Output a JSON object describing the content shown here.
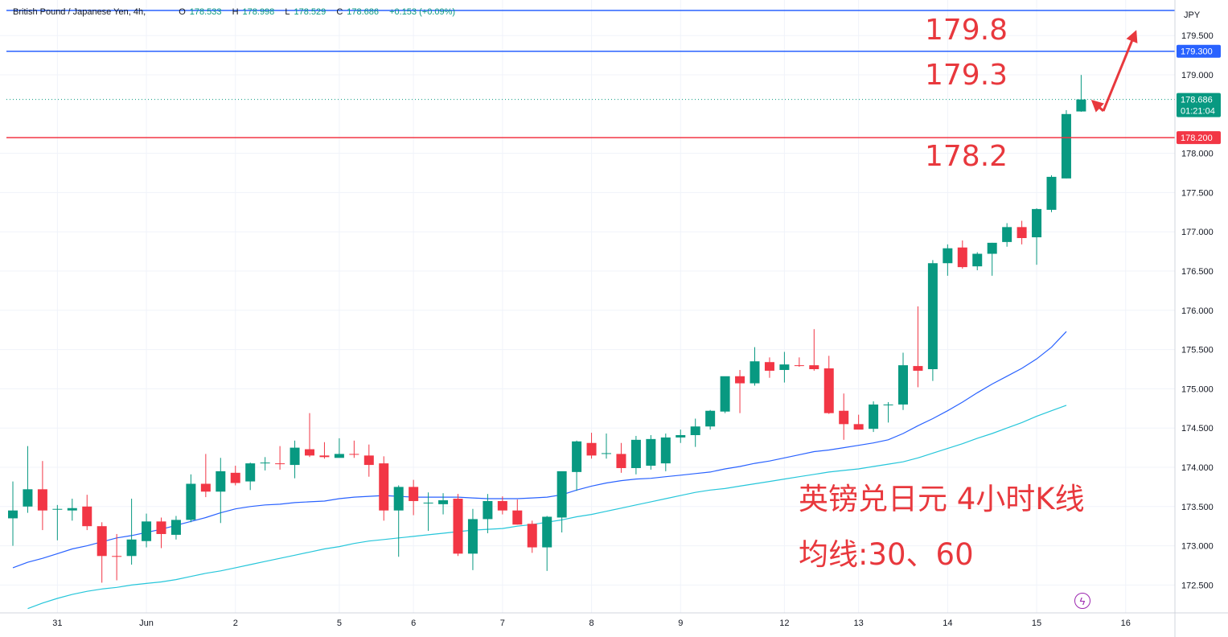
{
  "legend": {
    "title": "British Pound / Japanese Yen, 4h,",
    "open_label": "O",
    "open": "178.533",
    "high_label": "H",
    "high": "178.998",
    "low_label": "L",
    "low": "178.529",
    "close_label": "C",
    "close": "178.686",
    "change": "+0.153 (+0.09%)"
  },
  "currency_label": "JPY",
  "current_price_label": "178.686",
  "countdown": "01:21:04",
  "annotations": {
    "target_high": "179.8",
    "resistance": "179.3",
    "support": "178.2",
    "caption_line1": "英镑兑日元 4小时K线",
    "caption_line2": "均线:30、60"
  },
  "colors": {
    "up": "#089981",
    "down": "#f23645",
    "blue_line": "#2962ff",
    "red_line": "#f23645",
    "ma30": "#2962ff",
    "ma60": "#26c6da",
    "annotation": "#e8383d"
  },
  "chart_data": {
    "type": "candlestick",
    "symbol": "British Pound / Japanese Yen",
    "timeframe": "4h",
    "y_range": [
      172.2,
      179.9
    ],
    "y_ticks": [
      "179.500",
      "179.000",
      "178.000",
      "177.500",
      "177.000",
      "176.500",
      "176.000",
      "175.500",
      "175.000",
      "174.500",
      "174.000",
      "173.500",
      "173.000",
      "172.500"
    ],
    "x_labels": [
      {
        "label": "31",
        "bar": 3
      },
      {
        "label": "Jun",
        "bar": 9
      },
      {
        "label": "2",
        "bar": 15
      },
      {
        "label": "5",
        "bar": 22
      },
      {
        "label": "6",
        "bar": 27
      },
      {
        "label": "7",
        "bar": 33
      },
      {
        "label": "8",
        "bar": 39
      },
      {
        "label": "9",
        "bar": 45
      },
      {
        "label": "12",
        "bar": 52
      },
      {
        "label": "13",
        "bar": 57
      },
      {
        "label": "14",
        "bar": 63
      },
      {
        "label": "15",
        "bar": 69
      },
      {
        "label": "16",
        "bar": 75
      }
    ],
    "candles": [
      {
        "o": 173.35,
        "h": 173.82,
        "l": 173.0,
        "c": 173.45
      },
      {
        "o": 173.5,
        "h": 174.27,
        "l": 173.42,
        "c": 173.72
      },
      {
        "o": 173.72,
        "h": 174.08,
        "l": 173.2,
        "c": 173.45
      },
      {
        "o": 173.47,
        "h": 173.52,
        "l": 173.07,
        "c": 173.47
      },
      {
        "o": 173.45,
        "h": 173.6,
        "l": 173.32,
        "c": 173.48
      },
      {
        "o": 173.5,
        "h": 173.65,
        "l": 173.2,
        "c": 173.25
      },
      {
        "o": 173.25,
        "h": 173.3,
        "l": 172.53,
        "c": 172.87
      },
      {
        "o": 172.87,
        "h": 173.15,
        "l": 172.56,
        "c": 172.86
      },
      {
        "o": 172.87,
        "h": 173.6,
        "l": 172.76,
        "c": 173.08
      },
      {
        "o": 173.06,
        "h": 173.41,
        "l": 172.98,
        "c": 173.31
      },
      {
        "o": 173.31,
        "h": 173.36,
        "l": 172.97,
        "c": 173.15
      },
      {
        "o": 173.14,
        "h": 173.38,
        "l": 173.08,
        "c": 173.33
      },
      {
        "o": 173.33,
        "h": 173.91,
        "l": 173.3,
        "c": 173.79
      },
      {
        "o": 173.79,
        "h": 174.17,
        "l": 173.62,
        "c": 173.69
      },
      {
        "o": 173.69,
        "h": 174.12,
        "l": 173.29,
        "c": 173.95
      },
      {
        "o": 173.93,
        "h": 174.02,
        "l": 173.77,
        "c": 173.8
      },
      {
        "o": 173.82,
        "h": 174.06,
        "l": 173.71,
        "c": 174.05
      },
      {
        "o": 174.05,
        "h": 174.13,
        "l": 173.96,
        "c": 174.06
      },
      {
        "o": 174.05,
        "h": 174.27,
        "l": 173.97,
        "c": 174.04
      },
      {
        "o": 174.03,
        "h": 174.34,
        "l": 173.86,
        "c": 174.25
      },
      {
        "o": 174.23,
        "h": 174.69,
        "l": 174.13,
        "c": 174.15
      },
      {
        "o": 174.15,
        "h": 174.32,
        "l": 174.11,
        "c": 174.13
      },
      {
        "o": 174.12,
        "h": 174.37,
        "l": 174.13,
        "c": 174.17
      },
      {
        "o": 174.17,
        "h": 174.34,
        "l": 174.12,
        "c": 174.16
      },
      {
        "o": 174.15,
        "h": 174.29,
        "l": 173.88,
        "c": 174.03
      },
      {
        "o": 174.05,
        "h": 174.14,
        "l": 173.32,
        "c": 173.45
      },
      {
        "o": 173.45,
        "h": 173.77,
        "l": 172.86,
        "c": 173.75
      },
      {
        "o": 173.75,
        "h": 173.84,
        "l": 173.39,
        "c": 173.57
      },
      {
        "o": 173.55,
        "h": 173.68,
        "l": 173.19,
        "c": 173.55
      },
      {
        "o": 173.53,
        "h": 173.67,
        "l": 173.4,
        "c": 173.58
      },
      {
        "o": 173.6,
        "h": 173.66,
        "l": 172.87,
        "c": 172.9
      },
      {
        "o": 172.9,
        "h": 173.47,
        "l": 172.69,
        "c": 173.34
      },
      {
        "o": 173.34,
        "h": 173.66,
        "l": 173.16,
        "c": 173.57
      },
      {
        "o": 173.57,
        "h": 173.63,
        "l": 173.4,
        "c": 173.45
      },
      {
        "o": 173.45,
        "h": 173.59,
        "l": 173.27,
        "c": 173.27
      },
      {
        "o": 173.28,
        "h": 173.32,
        "l": 172.91,
        "c": 172.98
      },
      {
        "o": 172.98,
        "h": 173.38,
        "l": 172.68,
        "c": 173.37
      },
      {
        "o": 173.36,
        "h": 173.94,
        "l": 173.17,
        "c": 173.95
      },
      {
        "o": 173.94,
        "h": 174.34,
        "l": 173.7,
        "c": 174.33
      },
      {
        "o": 174.31,
        "h": 174.44,
        "l": 174.11,
        "c": 174.15
      },
      {
        "o": 174.17,
        "h": 174.43,
        "l": 174.11,
        "c": 174.18
      },
      {
        "o": 174.17,
        "h": 174.31,
        "l": 173.93,
        "c": 173.99
      },
      {
        "o": 173.99,
        "h": 174.4,
        "l": 173.91,
        "c": 174.35
      },
      {
        "o": 174.02,
        "h": 174.41,
        "l": 173.97,
        "c": 174.36
      },
      {
        "o": 174.05,
        "h": 174.43,
        "l": 173.95,
        "c": 174.38
      },
      {
        "o": 174.38,
        "h": 174.48,
        "l": 174.31,
        "c": 174.41
      },
      {
        "o": 174.41,
        "h": 174.62,
        "l": 174.26,
        "c": 174.52
      },
      {
        "o": 174.52,
        "h": 174.73,
        "l": 174.48,
        "c": 174.72
      },
      {
        "o": 174.71,
        "h": 175.14,
        "l": 174.69,
        "c": 175.16
      },
      {
        "o": 175.16,
        "h": 175.24,
        "l": 174.69,
        "c": 175.07
      },
      {
        "o": 175.07,
        "h": 175.53,
        "l": 175.04,
        "c": 175.35
      },
      {
        "o": 175.34,
        "h": 175.4,
        "l": 175.14,
        "c": 175.23
      },
      {
        "o": 175.24,
        "h": 175.47,
        "l": 175.08,
        "c": 175.31
      },
      {
        "o": 175.3,
        "h": 175.4,
        "l": 175.28,
        "c": 175.29
      },
      {
        "o": 175.3,
        "h": 175.76,
        "l": 175.23,
        "c": 175.25
      },
      {
        "o": 175.26,
        "h": 175.42,
        "l": 174.68,
        "c": 174.69
      },
      {
        "o": 174.72,
        "h": 174.94,
        "l": 174.35,
        "c": 174.55
      },
      {
        "o": 174.55,
        "h": 174.67,
        "l": 174.49,
        "c": 174.48
      },
      {
        "o": 174.49,
        "h": 174.84,
        "l": 174.45,
        "c": 174.8
      },
      {
        "o": 174.8,
        "h": 174.83,
        "l": 174.57,
        "c": 174.8
      },
      {
        "o": 174.8,
        "h": 175.46,
        "l": 174.73,
        "c": 175.3
      },
      {
        "o": 175.29,
        "h": 176.05,
        "l": 175.02,
        "c": 175.23
      },
      {
        "o": 175.25,
        "h": 176.64,
        "l": 175.1,
        "c": 176.6
      },
      {
        "o": 176.6,
        "h": 176.84,
        "l": 176.44,
        "c": 176.79
      },
      {
        "o": 176.8,
        "h": 176.89,
        "l": 176.53,
        "c": 176.55
      },
      {
        "o": 176.56,
        "h": 176.74,
        "l": 176.51,
        "c": 176.72
      },
      {
        "o": 176.72,
        "h": 176.86,
        "l": 176.44,
        "c": 176.86
      },
      {
        "o": 176.87,
        "h": 177.11,
        "l": 176.81,
        "c": 177.06
      },
      {
        "o": 177.06,
        "h": 177.14,
        "l": 176.84,
        "c": 176.92
      },
      {
        "o": 176.93,
        "h": 177.3,
        "l": 176.58,
        "c": 177.29
      },
      {
        "o": 177.28,
        "h": 177.72,
        "l": 177.25,
        "c": 177.7
      },
      {
        "o": 177.68,
        "h": 178.55,
        "l": 177.68,
        "c": 178.5
      },
      {
        "o": 178.533,
        "h": 178.998,
        "l": 178.529,
        "c": 178.686
      }
    ],
    "ma30": [
      172.72,
      172.79,
      172.84,
      172.9,
      172.96,
      173.0,
      173.05,
      173.1,
      173.13,
      173.17,
      173.21,
      173.26,
      173.31,
      173.36,
      173.42,
      173.47,
      173.5,
      173.52,
      173.53,
      173.55,
      173.56,
      173.57,
      173.6,
      173.62,
      173.63,
      173.64,
      173.63,
      173.62,
      173.62,
      173.62,
      173.62,
      173.61,
      173.6,
      173.6,
      173.6,
      173.61,
      173.62,
      173.65,
      173.71,
      173.76,
      173.8,
      173.83,
      173.85,
      173.86,
      173.88,
      173.9,
      173.92,
      173.94,
      173.98,
      174.01,
      174.05,
      174.08,
      174.12,
      174.16,
      174.2,
      174.22,
      174.25,
      174.28,
      174.31,
      174.35,
      174.43,
      174.53,
      174.62,
      174.72,
      174.83,
      174.95,
      175.06,
      175.16,
      175.26,
      175.38,
      175.53,
      175.73
    ],
    "ma60": [
      null,
      172.2,
      172.27,
      172.33,
      172.38,
      172.42,
      172.45,
      172.47,
      172.5,
      172.52,
      172.54,
      172.57,
      172.61,
      172.65,
      172.68,
      172.72,
      172.76,
      172.8,
      172.84,
      172.88,
      172.92,
      172.96,
      172.99,
      173.03,
      173.06,
      173.08,
      173.1,
      173.12,
      173.14,
      173.16,
      173.18,
      173.2,
      173.21,
      173.22,
      173.25,
      173.27,
      173.3,
      173.33,
      173.37,
      173.4,
      173.44,
      173.48,
      173.52,
      173.56,
      173.6,
      173.64,
      173.68,
      173.71,
      173.73,
      173.76,
      173.79,
      173.82,
      173.85,
      173.88,
      173.91,
      173.94,
      173.96,
      173.98,
      174.01,
      174.04,
      174.07,
      174.12,
      174.18,
      174.24,
      174.3,
      174.37,
      174.43,
      174.5,
      174.57,
      174.65,
      174.72,
      174.79
    ]
  }
}
